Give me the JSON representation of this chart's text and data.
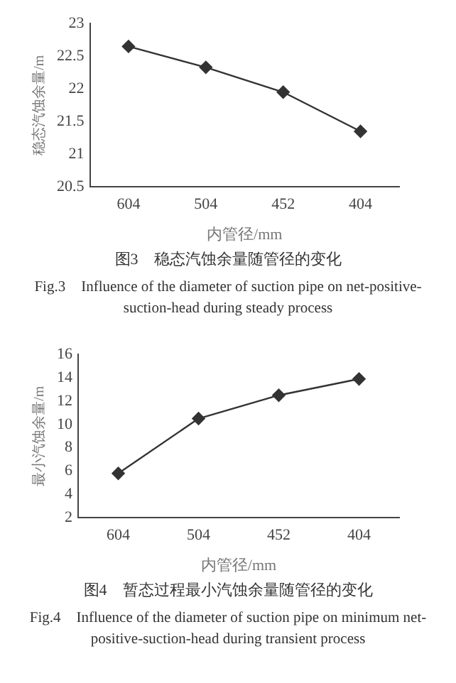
{
  "chart_data": [
    {
      "type": "line",
      "xlabel": "内管径/mm",
      "ylabel": "稳态汽蚀余量/m",
      "categories": [
        "604",
        "504",
        "452",
        "404"
      ],
      "series": [
        {
          "color": "#333333",
          "values": [
            22.65,
            22.33,
            21.95,
            21.35
          ]
        }
      ],
      "ylim": [
        20.5,
        23
      ],
      "yticks": [
        20.5,
        21,
        21.5,
        22,
        22.5,
        23
      ],
      "grid": false,
      "legend": false,
      "marker": "diamond",
      "line_style": "solid",
      "annotations": [
        "图3　稳态汽蚀余量随管径的变化",
        "Fig.3　Influence of the diameter of suction pipe on net-positive-suction-head during steady process"
      ]
    },
    {
      "type": "line",
      "xlabel": "内管径/mm",
      "ylabel": "最小汽蚀余量/m",
      "categories": [
        "604",
        "504",
        "452",
        "404"
      ],
      "series": [
        {
          "color": "#333333",
          "values": [
            5.8,
            10.5,
            12.5,
            13.9
          ]
        }
      ],
      "ylim": [
        2,
        16
      ],
      "yticks": [
        2,
        4,
        6,
        8,
        10,
        12,
        14,
        16
      ],
      "grid": false,
      "legend": false,
      "marker": "diamond",
      "line_style": "solid",
      "annotations": [
        "图4　暂态过程最小汽蚀余量随管径的变化",
        "Fig.4　Influence of the diameter of suction pipe on minimum net-positive-suction-head during transient process"
      ]
    }
  ]
}
